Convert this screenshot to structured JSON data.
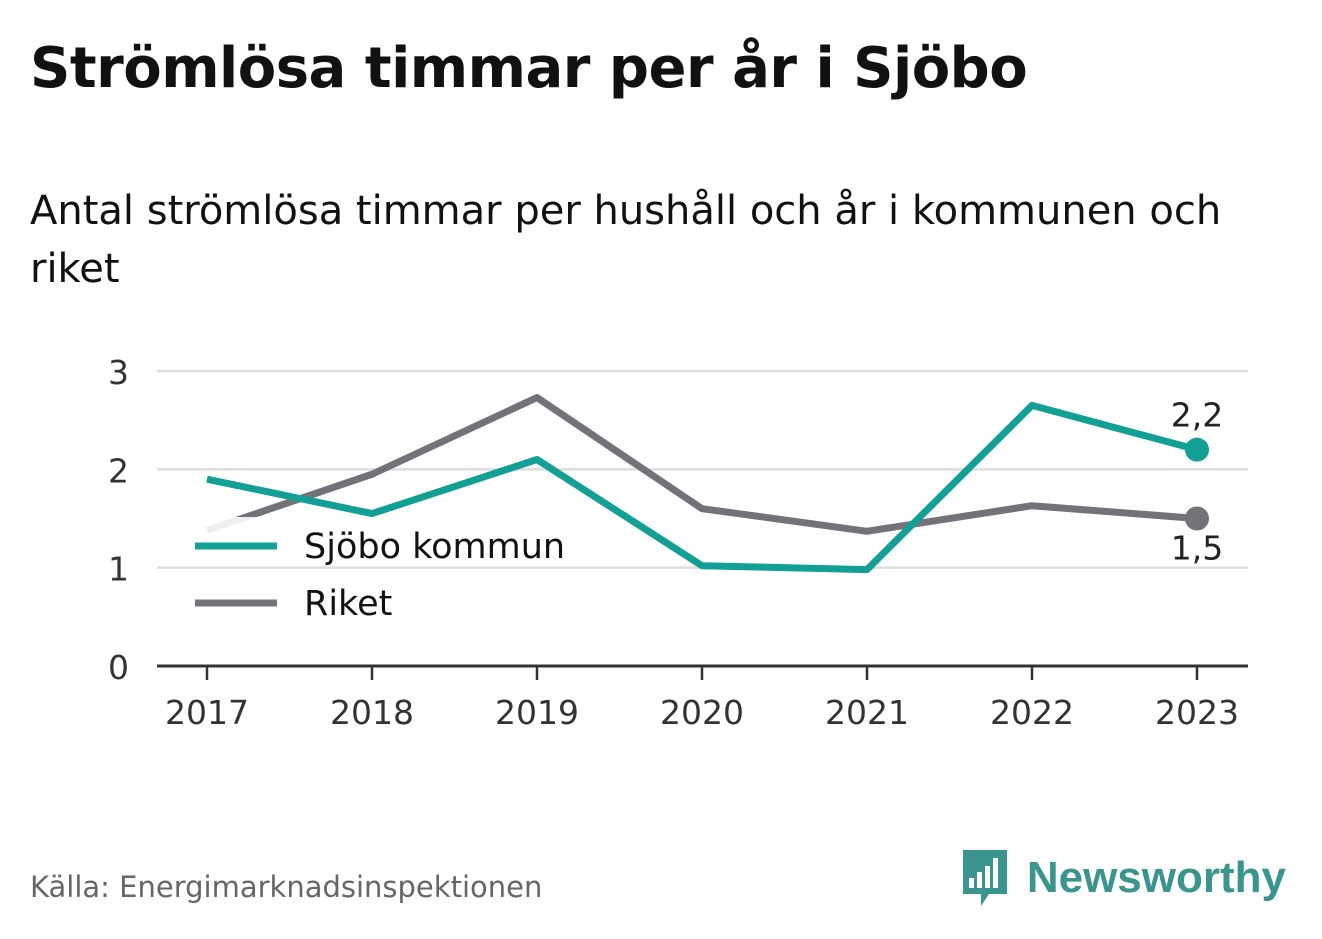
{
  "header": {
    "title": "Strömlösa timmar per år i Sjöbo",
    "subtitle": "Antal strömlösa timmar per hushåll och år i kommunen och riket"
  },
  "footer": {
    "source": "Källa: Energimarknadsinspektionen",
    "brand": "Newsworthy"
  },
  "colors": {
    "kommun": "#12a096",
    "riket": "#737278",
    "grid": "#dddddd",
    "axis": "#333333",
    "brand": "#3a958f"
  },
  "icons": {
    "brand": "bar-chart-speech-bubble-icon"
  },
  "chart_data": {
    "type": "line",
    "x": [
      "2017",
      "2018",
      "2019",
      "2020",
      "2021",
      "2022",
      "2023"
    ],
    "ylim": [
      0,
      3
    ],
    "yticks": [
      "0",
      "1",
      "2",
      "3"
    ],
    "grid": true,
    "legend_position": "left-middle",
    "series": [
      {
        "name": "Sjöbo kommun",
        "color": "#12a096",
        "values": [
          1.9,
          1.55,
          2.1,
          1.02,
          0.98,
          2.65,
          2.2
        ],
        "end_label": "2,2"
      },
      {
        "name": "Riket",
        "color": "#737278",
        "values": [
          1.38,
          1.95,
          2.73,
          1.6,
          1.37,
          1.63,
          1.5
        ],
        "end_label": "1,5"
      }
    ]
  }
}
